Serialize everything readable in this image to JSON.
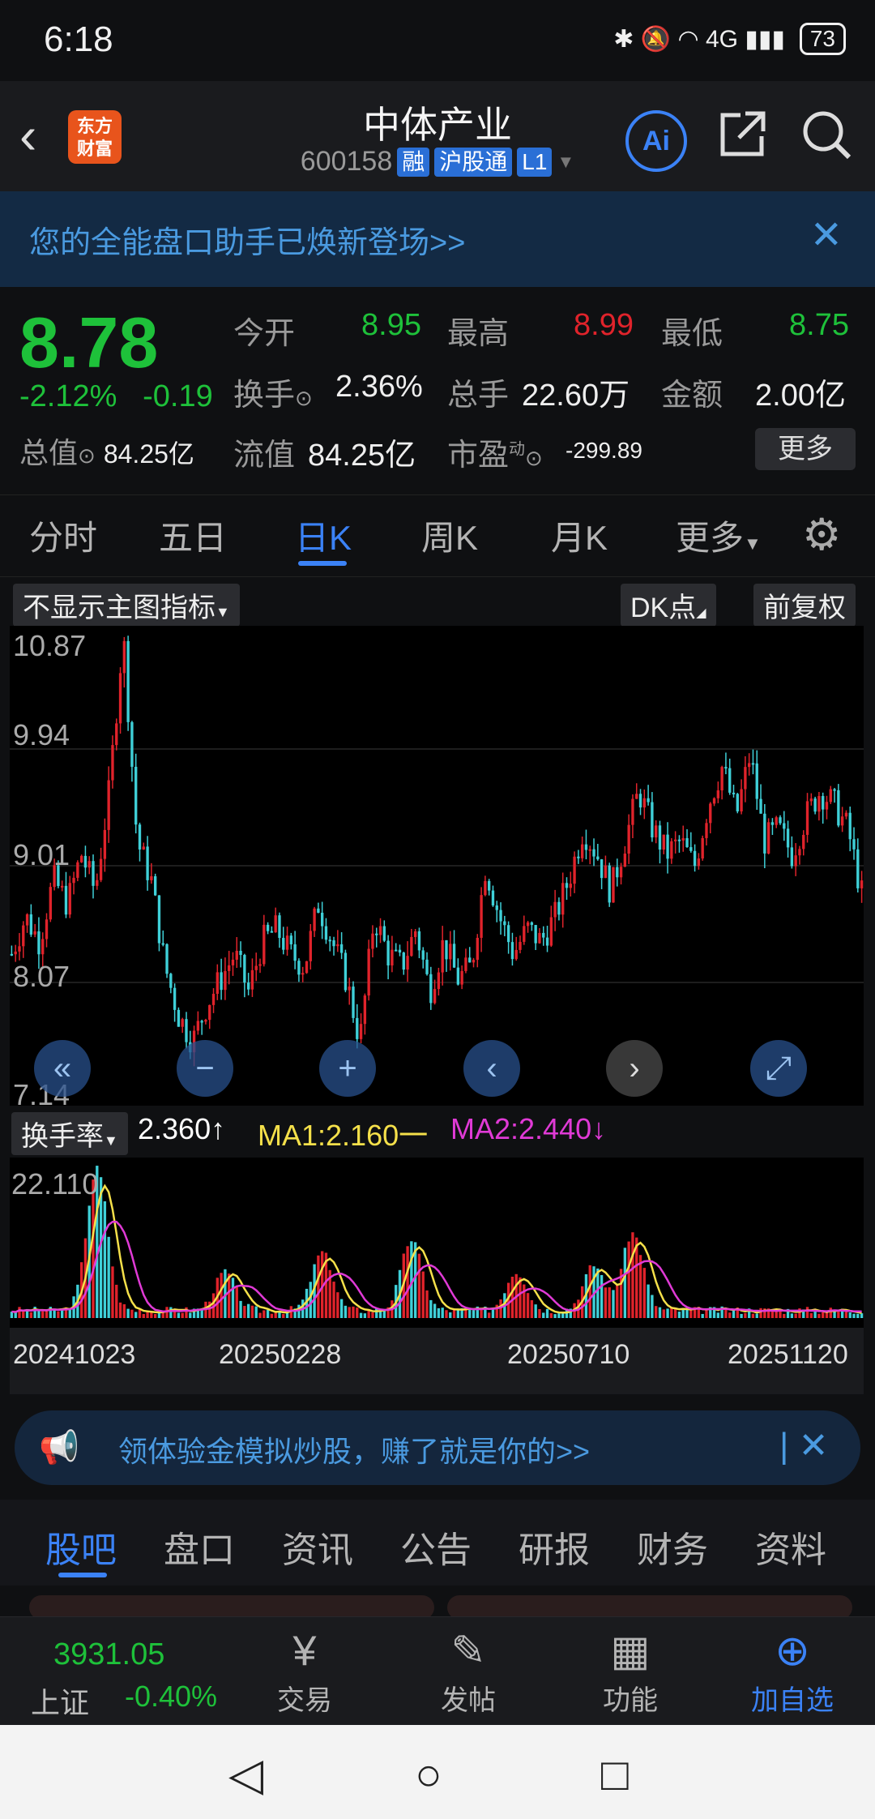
{
  "status": {
    "time": "6:18",
    "icons": "✱ 🔕 ◠ 4G ▮▮▮",
    "battery": "73"
  },
  "header": {
    "title": "中体产业",
    "code": "600158",
    "tags": [
      "融",
      "沪股通",
      "L1"
    ],
    "logo": "东方\n财富",
    "ai": "Ai"
  },
  "banner": {
    "text": "您的全能盘口助手已焕新登场>>"
  },
  "quote": {
    "price": "8.78",
    "pct": "-2.12%",
    "change": "-0.19",
    "mv_label": "总值",
    "mv_value": "84.25亿",
    "fields": [
      {
        "label": "今开",
        "value": "8.95",
        "color": "#1ec13a"
      },
      {
        "label": "最高",
        "value": "8.99",
        "color": "#e0232b"
      },
      {
        "label": "最低",
        "value": "8.75",
        "color": "#1ec13a"
      },
      {
        "label": "换手",
        "value": "2.36%",
        "color": "#eeeeee"
      },
      {
        "label": "总手",
        "value": "22.60万",
        "color": "#eeeeee"
      },
      {
        "label": "金额",
        "value": "2.00亿",
        "color": "#eeeeee"
      },
      {
        "label": "流值",
        "value": "84.25亿",
        "color": "#eeeeee"
      },
      {
        "label": "市盈",
        "value": "-299.89",
        "color": "#eeeeee"
      }
    ],
    "pe_sup": "动",
    "more": "更多"
  },
  "tabs": [
    "分时",
    "五日",
    "日K",
    "周K",
    "月K",
    "更多"
  ],
  "chart_controls": {
    "indicator": "不显示主图指标",
    "dk": "DK点",
    "adjust": "前复权"
  },
  "kline": {
    "y_labels": [
      "10.87",
      "9.94",
      "9.01",
      "8.07",
      "7.14"
    ]
  },
  "volume": {
    "indicator": "换手率",
    "value": "2.360↑",
    "ma1": "MA1:2.160一",
    "ma2": "MA2:2.440↓",
    "max": "22.110",
    "dates": [
      "20241023",
      "20250228",
      "20250710",
      "20251120"
    ]
  },
  "colors": {
    "up": "#e0232b",
    "down": "#3fd0d8",
    "ma1": "#f5e04a",
    "ma2": "#e03ad6",
    "accent": "#3b82f6"
  },
  "promo": {
    "text": "领体验金模拟炒股，赚了就是你的>>"
  },
  "footer_tabs": [
    "股吧",
    "盘口",
    "资讯",
    "公告",
    "研报",
    "财务",
    "资料"
  ],
  "bottom_nav": {
    "index_value": "3931.05",
    "index_name": "上证",
    "index_pct": "-0.40%",
    "items": [
      {
        "label": "交易",
        "icon": "¥"
      },
      {
        "label": "发帖",
        "icon": "✎"
      },
      {
        "label": "功能",
        "icon": "▦"
      },
      {
        "label": "加自选",
        "icon": "⊕"
      }
    ]
  },
  "chart_data": {
    "type": "line",
    "title": "",
    "series": [
      {
        "values": [
          8.3,
          8.6,
          8.4,
          8.9,
          8.7,
          9.1,
          8.8,
          9.6,
          10.87,
          9.2,
          8.9,
          8.2,
          7.8,
          7.6,
          7.9,
          8.1,
          8.3,
          8.0,
          8.4,
          8.5,
          8.3,
          8.2,
          8.7,
          8.4,
          8.1,
          7.6,
          8.6,
          8.3,
          8.2,
          8.5,
          8.0,
          8.4,
          8.1,
          8.2,
          9.0,
          8.6,
          8.3,
          8.5,
          8.4,
          8.6,
          8.9,
          9.3,
          9.1,
          8.8,
          9.2,
          9.6,
          9.3,
          9.1,
          9.2,
          9.0,
          9.5,
          9.8,
          9.4,
          9.9,
          9.2,
          9.3,
          9.1,
          9.4,
          9.6,
          9.5,
          9.3,
          8.78
        ]
      }
    ],
    "ylim": [
      7.14,
      10.87
    ]
  }
}
